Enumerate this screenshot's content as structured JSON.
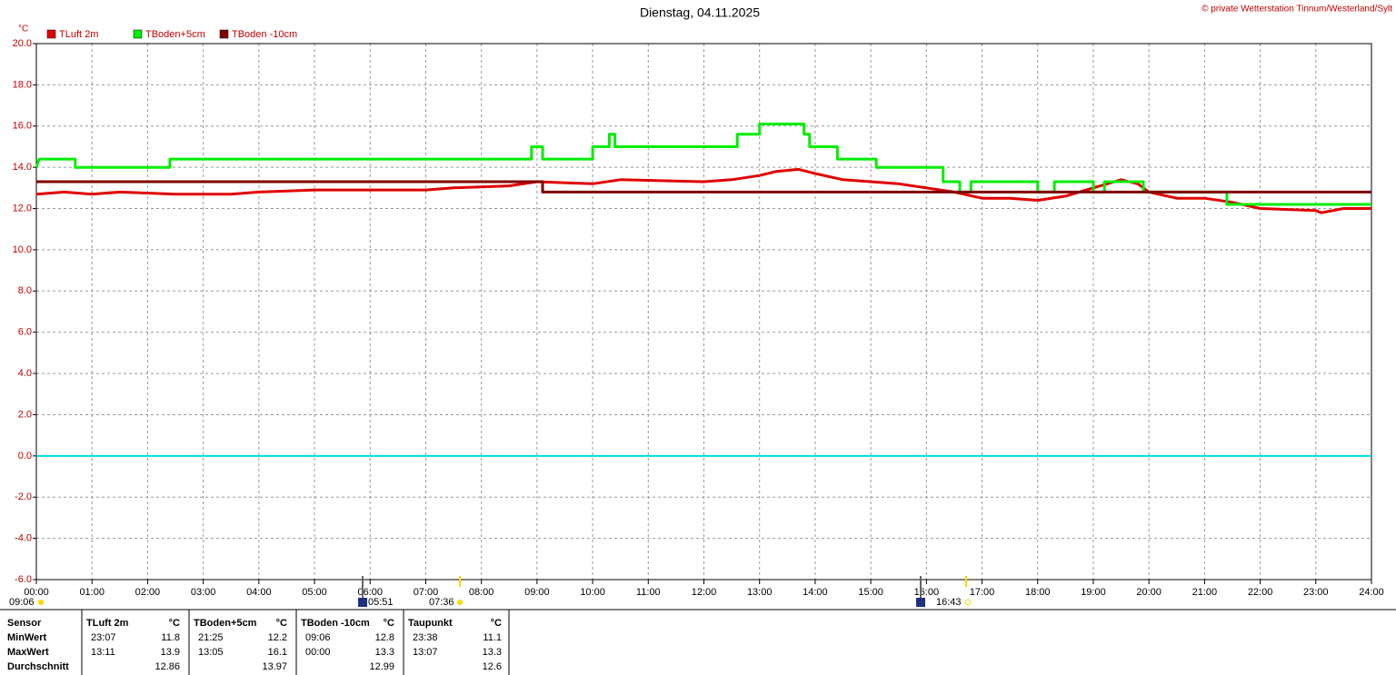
{
  "chart_data": {
    "type": "line",
    "title": "Dienstag, 04.11.2025",
    "copyright": "© private Wetterstation Tinnum/Westerland/Sylt",
    "y_label": "°C",
    "xlim": [
      0,
      24
    ],
    "ylim": [
      -6,
      20
    ],
    "grid": true,
    "yticks": [
      {
        "value": -6,
        "label": "-6.0"
      },
      {
        "value": -4,
        "label": "-4.0"
      },
      {
        "value": -2,
        "label": "-2.0"
      },
      {
        "value": 0,
        "label": "0.0"
      },
      {
        "value": 2,
        "label": "2.0"
      },
      {
        "value": 4,
        "label": "4.0"
      },
      {
        "value": 6,
        "label": "6.0"
      },
      {
        "value": 8,
        "label": "8.0"
      },
      {
        "value": 10,
        "label": "10.0"
      },
      {
        "value": 12,
        "label": "12.0"
      },
      {
        "value": 14,
        "label": "14.0"
      },
      {
        "value": 16,
        "label": "16.0"
      },
      {
        "value": 18,
        "label": "18.0"
      },
      {
        "value": 20,
        "label": "20.0"
      }
    ],
    "xticks": [
      {
        "value": 0,
        "label": "00:00"
      },
      {
        "value": 1,
        "label": "01:00"
      },
      {
        "value": 2,
        "label": "02:00"
      },
      {
        "value": 3,
        "label": "03:00"
      },
      {
        "value": 4,
        "label": "04:00"
      },
      {
        "value": 5,
        "label": "05:00"
      },
      {
        "value": 6,
        "label": "06:00"
      },
      {
        "value": 7,
        "label": "07:00"
      },
      {
        "value": 8,
        "label": "08:00"
      },
      {
        "value": 9,
        "label": "09:00"
      },
      {
        "value": 10,
        "label": "10:00"
      },
      {
        "value": 11,
        "label": "11:00"
      },
      {
        "value": 12,
        "label": "12:00"
      },
      {
        "value": 13,
        "label": "13:00"
      },
      {
        "value": 14,
        "label": "14:00"
      },
      {
        "value": 15,
        "label": "15:00"
      },
      {
        "value": 16,
        "label": "16:00"
      },
      {
        "value": 17,
        "label": "17:00"
      },
      {
        "value": 18,
        "label": "18:00"
      },
      {
        "value": 19,
        "label": "19:00"
      },
      {
        "value": 20,
        "label": "20:00"
      },
      {
        "value": 21,
        "label": "21:00"
      },
      {
        "value": 22,
        "label": "22:00"
      },
      {
        "value": 23,
        "label": "23:00"
      },
      {
        "value": 24,
        "label": "24:00"
      }
    ],
    "reference_lines": [
      {
        "value": 0,
        "color": "#00d8e8"
      }
    ],
    "series": [
      {
        "name": "TLuft 2m",
        "color": "#e00000",
        "x": [
          0,
          0.5,
          1.0,
          1.5,
          2.5,
          3.5,
          4.0,
          5.0,
          7.0,
          7.5,
          8.5,
          9.0,
          10.0,
          10.5,
          12.0,
          12.5,
          13.0,
          13.3,
          13.7,
          14.0,
          14.5,
          15.0,
          15.5,
          16.0,
          16.5,
          17.0,
          17.5,
          18.0,
          18.5,
          19.0,
          19.5,
          19.8,
          20.0,
          20.5,
          21.0,
          21.5,
          22.0,
          23.0,
          23.1,
          23.5,
          24.0
        ],
        "values": [
          12.7,
          12.8,
          12.7,
          12.8,
          12.7,
          12.7,
          12.8,
          12.9,
          12.9,
          13.0,
          13.1,
          13.3,
          13.2,
          13.4,
          13.3,
          13.4,
          13.6,
          13.8,
          13.9,
          13.7,
          13.4,
          13.3,
          13.2,
          13.0,
          12.8,
          12.5,
          12.5,
          12.4,
          12.6,
          13.0,
          13.4,
          13.2,
          12.8,
          12.5,
          12.5,
          12.3,
          12.0,
          11.9,
          11.8,
          12.0,
          12.0
        ]
      },
      {
        "name": "TBoden+5cm",
        "color": "#00ee00",
        "x": [
          0,
          0.05,
          0.7,
          0.7,
          2.4,
          2.4,
          8.9,
          8.9,
          9.1,
          9.1,
          10.0,
          10.0,
          10.3,
          10.3,
          10.4,
          10.4,
          12.6,
          12.6,
          13.0,
          13.0,
          13.8,
          13.8,
          13.9,
          13.9,
          14.4,
          14.4,
          15.1,
          15.1,
          16.3,
          16.3,
          16.6,
          16.6,
          16.8,
          16.8,
          18.0,
          18.0,
          18.3,
          18.3,
          19.0,
          19.0,
          19.2,
          19.2,
          19.9,
          19.9,
          21.4,
          21.4,
          24
        ],
        "values": [
          14.0,
          14.4,
          14.4,
          14.0,
          14.0,
          14.4,
          14.4,
          15.0,
          15.0,
          14.4,
          14.4,
          15.0,
          15.0,
          15.6,
          15.6,
          15.0,
          15.0,
          15.6,
          15.6,
          16.1,
          16.1,
          15.6,
          15.6,
          15.0,
          15.0,
          14.4,
          14.4,
          14.0,
          14.0,
          13.3,
          13.3,
          12.8,
          12.8,
          13.3,
          13.3,
          12.8,
          12.8,
          13.3,
          13.3,
          12.8,
          12.8,
          13.3,
          13.3,
          12.8,
          12.8,
          12.2,
          12.2
        ]
      },
      {
        "name": "TBoden -10cm",
        "color": "#800000",
        "x": [
          0,
          9.1,
          9.1,
          24
        ],
        "values": [
          13.3,
          13.3,
          12.8,
          12.8
        ]
      }
    ]
  },
  "annotations": [
    "09:06",
    "05:51",
    "07:36",
    "16:43"
  ],
  "table": {
    "header": [
      "Sensor",
      "TLuft 2m",
      "°C",
      "TBoden+5cm",
      "°C",
      "TBoden -10cm",
      "°C",
      "Taupunkt",
      "°C"
    ],
    "rows": [
      [
        "MinWert",
        "23:07",
        "11.8",
        "21:25",
        "12.2",
        "09:06",
        "12.8",
        "23:38",
        "11.1"
      ],
      [
        "MaxWert",
        "13:11",
        "13.9",
        "13:05",
        "16.1",
        "00:00",
        "13.3",
        "13:07",
        "13.3"
      ],
      [
        "Durchschnitt",
        null,
        "12.86",
        null,
        "13.97",
        null,
        "12.99",
        null,
        "12.6"
      ]
    ]
  }
}
